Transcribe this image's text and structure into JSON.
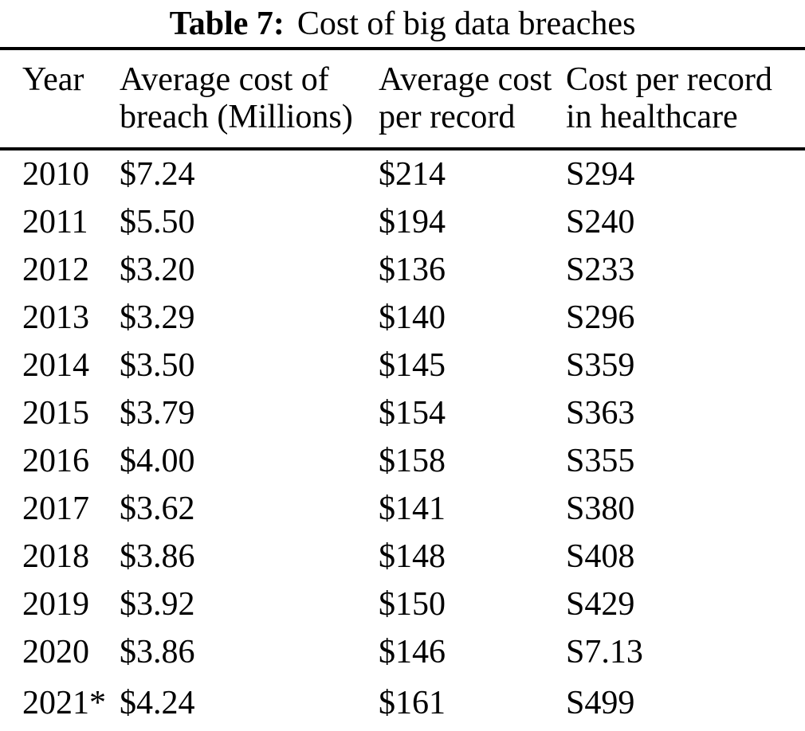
{
  "caption": {
    "label": "Table 7:",
    "text": "Cost of big data breaches"
  },
  "columns": [
    "Year",
    "Average cost of\nbreach (Millions)",
    "Average cost\nper record",
    "Cost per record\nin healthcare"
  ],
  "rows": [
    [
      "2010",
      "$7.24",
      "$214",
      "S294"
    ],
    [
      "2011",
      "$5.50",
      "$194",
      "S240"
    ],
    [
      "2012",
      "$3.20",
      "$136",
      "S233"
    ],
    [
      "2013",
      "$3.29",
      "$140",
      "S296"
    ],
    [
      "2014",
      "$3.50",
      "$145",
      "S359"
    ],
    [
      "2015",
      "$3.79",
      "$154",
      "S363"
    ],
    [
      "2016",
      "$4.00",
      "$158",
      "S355"
    ],
    [
      "2017",
      "$3.62",
      "$141",
      "S380"
    ],
    [
      "2018",
      "$3.86",
      "$148",
      "S408"
    ],
    [
      "2019",
      "$3.92",
      "$150",
      "S429"
    ],
    [
      "2020",
      "$3.86",
      "$146",
      "S7.13"
    ],
    [
      "2021*",
      "$4.24",
      "$161",
      "S499"
    ]
  ],
  "colors": {
    "text": "#000000",
    "background": "#ffffff",
    "rule": "#000000"
  }
}
